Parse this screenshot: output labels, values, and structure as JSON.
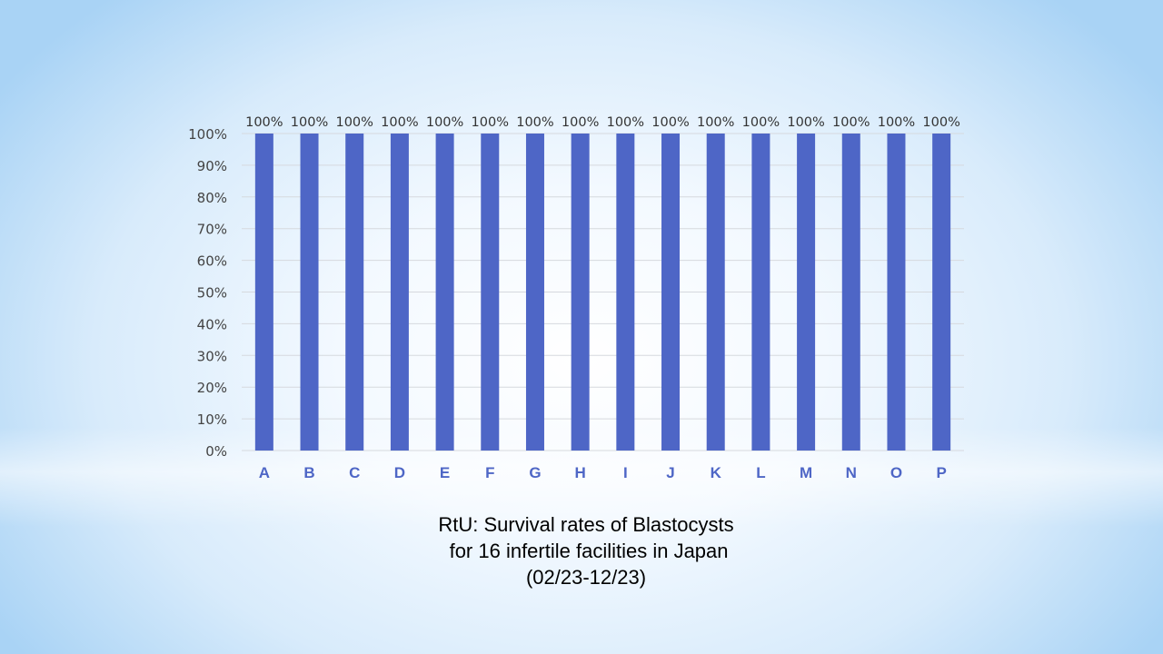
{
  "chart_data": {
    "type": "bar",
    "categories": [
      "A",
      "B",
      "C",
      "D",
      "E",
      "F",
      "G",
      "H",
      "I",
      "J",
      "K",
      "L",
      "M",
      "N",
      "O",
      "P"
    ],
    "values": [
      100,
      100,
      100,
      100,
      100,
      100,
      100,
      100,
      100,
      100,
      100,
      100,
      100,
      100,
      100,
      100
    ],
    "data_labels": [
      "100%",
      "100%",
      "100%",
      "100%",
      "100%",
      "100%",
      "100%",
      "100%",
      "100%",
      "100%",
      "100%",
      "100%",
      "100%",
      "100%",
      "100%",
      "100%"
    ],
    "ylim": [
      0,
      100
    ],
    "yticks": [
      "0%",
      "10%",
      "20%",
      "30%",
      "40%",
      "50%",
      "60%",
      "70%",
      "80%",
      "90%",
      "100%"
    ],
    "grid": true,
    "bar_color": "#4e66c6",
    "xlabel": "",
    "ylabel": ""
  },
  "caption": {
    "line1": "RtU: Survival rates of Blastocysts",
    "line2": " for 16 infertile facilities in Japan",
    "line3": "(02/23-12/23)"
  }
}
